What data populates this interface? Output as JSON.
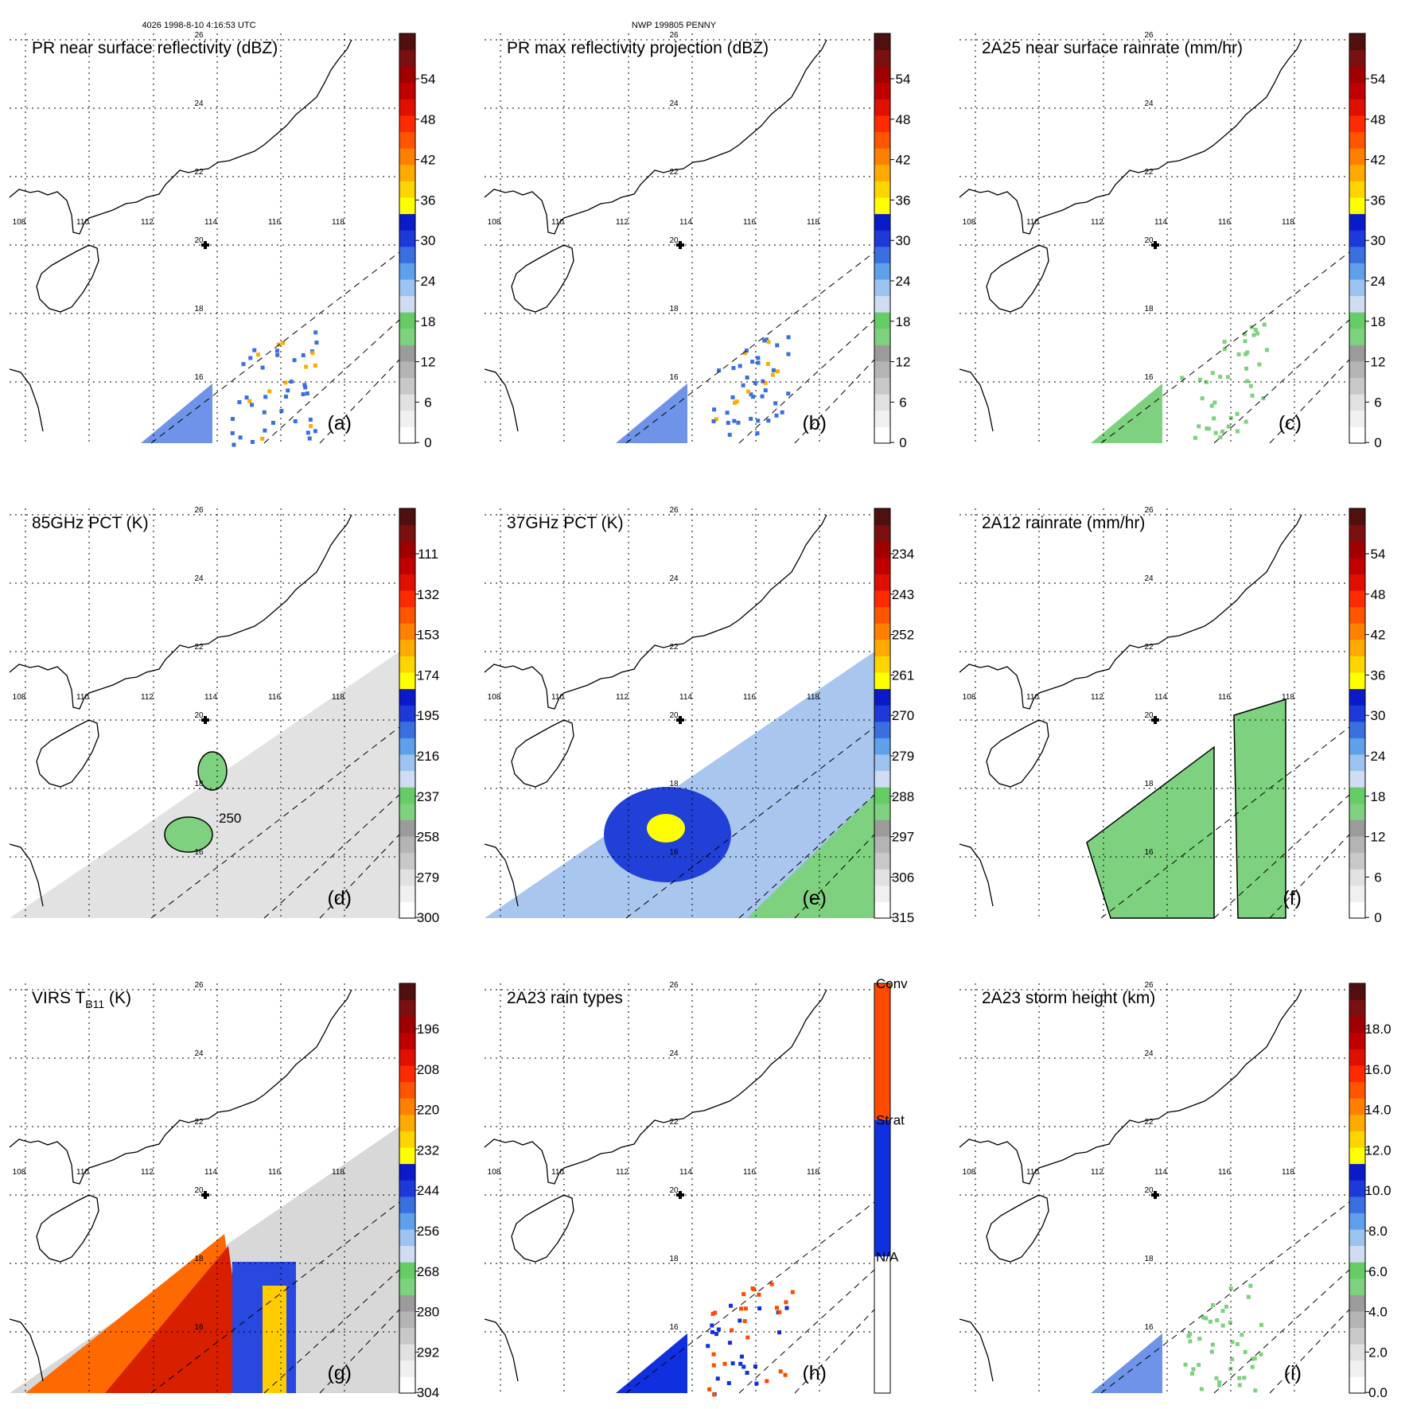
{
  "header": {
    "left": "4026 1998-8-10 4:16:53 UTC",
    "center": "NWP 199805 PENNY"
  },
  "map": {
    "lon_labels": [
      "108",
      "110",
      "112",
      "114",
      "116",
      "118"
    ],
    "lat_labels": [
      "26",
      "24",
      "22",
      "20",
      "18",
      "16"
    ]
  },
  "panels": [
    {
      "id": "a",
      "title": "PR near surface reflectivity (dBZ)",
      "label": "(a)",
      "colorbar": [
        "54",
        "48",
        "42",
        "36",
        "30",
        "24",
        "18",
        "12",
        "6",
        "0"
      ]
    },
    {
      "id": "b",
      "title": "PR max reflectivity projection (dBZ)",
      "label": "(b)",
      "colorbar": [
        "54",
        "48",
        "42",
        "36",
        "30",
        "24",
        "18",
        "12",
        "6",
        "0"
      ]
    },
    {
      "id": "c",
      "title": "2A25 near surface rainrate (mm/hr)",
      "label": "(c)",
      "colorbar": [
        "54",
        "48",
        "42",
        "36",
        "30",
        "24",
        "18",
        "12",
        "6",
        "0"
      ]
    },
    {
      "id": "d",
      "title": "85GHz PCT (K)",
      "label": "(d)",
      "colorbar": [
        "111",
        "132",
        "153",
        "174",
        "195",
        "216",
        "237",
        "258",
        "279",
        "300"
      ],
      "contour_label": "250"
    },
    {
      "id": "e",
      "title": "37GHz PCT (K)",
      "label": "(e)",
      "colorbar": [
        "234",
        "243",
        "252",
        "261",
        "270",
        "279",
        "288",
        "297",
        "306",
        "315"
      ]
    },
    {
      "id": "f",
      "title": "2A12 rainrate (mm/hr)",
      "label": "(f)",
      "colorbar": [
        "54",
        "48",
        "42",
        "36",
        "30",
        "24",
        "18",
        "12",
        "6",
        "0"
      ]
    },
    {
      "id": "g",
      "title": "VIRS T",
      "title_sub": "B11",
      "title_tail": " (K)",
      "label": "(g)",
      "colorbar": [
        "196",
        "208",
        "220",
        "232",
        "244",
        "256",
        "268",
        "280",
        "292",
        "304"
      ]
    },
    {
      "id": "h",
      "title": "2A23 rain types",
      "label": "(h)",
      "colorbar": [
        "Conv",
        "Strat",
        "N/A"
      ]
    },
    {
      "id": "i",
      "title": "2A23 storm height (km)",
      "label": "(i)",
      "colorbar": [
        "18.0",
        "16.0",
        "14.0",
        "12.0",
        "10.0",
        "8.0",
        "6.0",
        "4.0",
        "2.0",
        "0.0"
      ]
    }
  ],
  "colors": {
    "rain_scale": [
      "#ffffff",
      "#f0f0f0",
      "#e1e1e1",
      "#c8c8c8",
      "#b4b4b4",
      "#9b9b9b",
      "#7ed17e",
      "#66cc66",
      "#cfdcf2",
      "#9dc3f0",
      "#5fa0ea",
      "#3a6fe0",
      "#1d3ad8",
      "#0a1ac8",
      "#ffff00",
      "#ffd500",
      "#ffaa00",
      "#ff8000",
      "#ff5500",
      "#ff2a00",
      "#e01000",
      "#c00000",
      "#a00000",
      "#7a1010",
      "#501010"
    ],
    "type_conv": "#ff4a00",
    "type_strat": "#1030e0",
    "type_na": "#ffffff"
  }
}
